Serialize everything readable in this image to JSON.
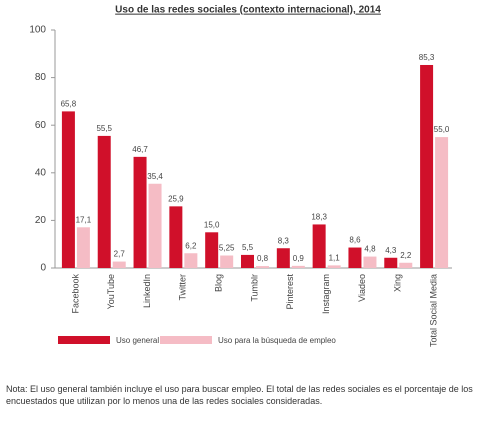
{
  "chart_data": {
    "type": "bar",
    "title": "Uso de las redes sociales (contexto internacional), 2014",
    "categories": [
      "Facebook",
      "YouTube",
      "LinkedIn",
      "Twitter",
      "Blog",
      "Tumblr",
      "Pinterest",
      "Instagram",
      "Viadeo",
      "Xing",
      "Total Social Media"
    ],
    "series": [
      {
        "name": "Uso general",
        "color": "#d0102a",
        "values": [
          65.8,
          55.5,
          46.7,
          25.9,
          15.0,
          5.5,
          8.3,
          18.3,
          8.6,
          4.3,
          85.3
        ],
        "value_labels": [
          "65,8",
          "55,5",
          "46,7",
          "25,9",
          "15,0",
          "5,5",
          "8,3",
          "18,3",
          "8,6",
          "4,3",
          "85,3"
        ]
      },
      {
        "name": "Uso para la búsqueda de empleo",
        "color": "#f5bcc5",
        "values": [
          17.1,
          2.7,
          35.4,
          6.2,
          5.25,
          0.8,
          0.9,
          1.1,
          4.8,
          2.2,
          55.0
        ],
        "value_labels": [
          "17,1",
          "2,7",
          "35,4",
          "6,2",
          "5,25",
          "0,8",
          "0,9",
          "1,1",
          "4,8",
          "2,2",
          "55,0"
        ]
      }
    ],
    "ylim": [
      0,
      100
    ],
    "yticks": [
      0,
      20,
      40,
      60,
      80,
      100
    ],
    "grid": false,
    "note": "Nota: El uso general también incluye el uso para buscar empleo. El total de las redes sociales es el porcentaje de los encuestados que utilizan por lo menos una de las redes  sociales consideradas."
  }
}
